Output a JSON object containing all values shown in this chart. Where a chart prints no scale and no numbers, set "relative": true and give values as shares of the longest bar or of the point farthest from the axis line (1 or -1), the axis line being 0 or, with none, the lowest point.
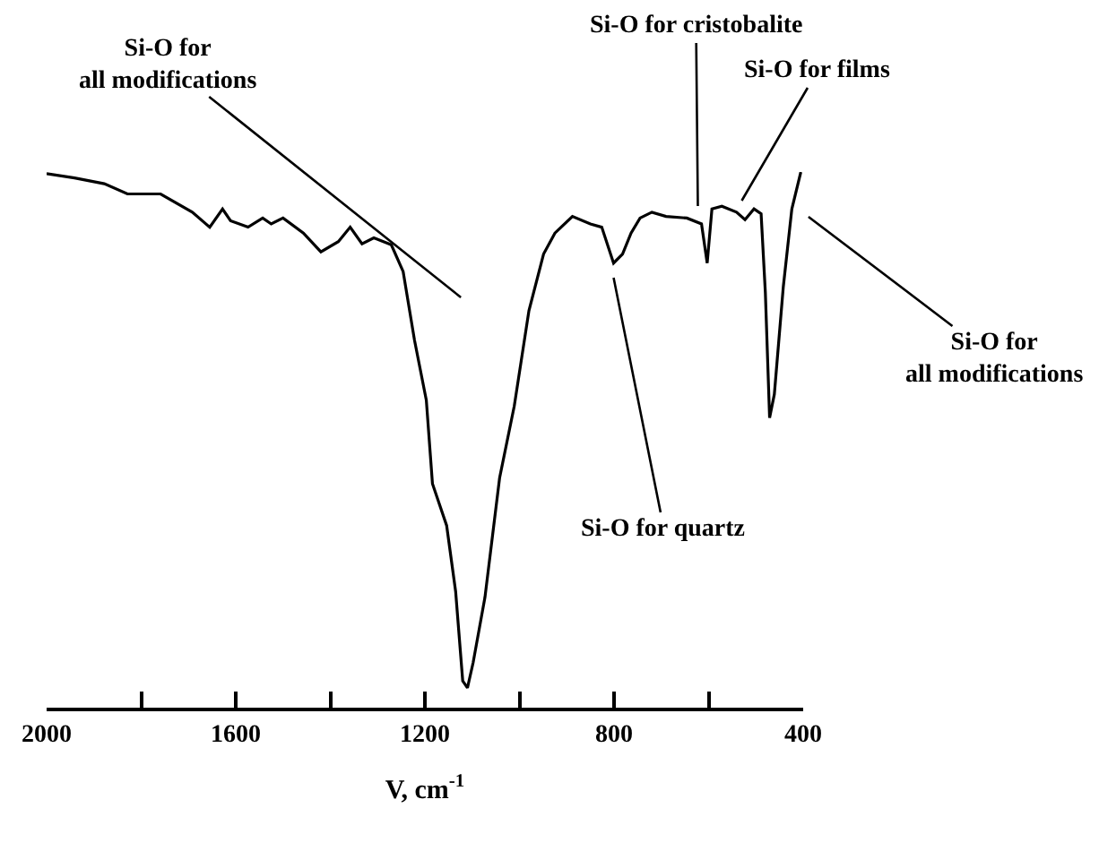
{
  "chart_data": {
    "type": "line",
    "relative": true,
    "xlabel": "V, cm$^{-1}$",
    "xlim": [
      2000,
      400
    ],
    "xticks": [
      2000,
      {
        "value": 1800,
        "label": null
      },
      1600,
      {
        "value": 1400,
        "label": null
      },
      1200,
      {
        "value": 1000,
        "label": null
      },
      800,
      {
        "value": 600,
        "label": null
      },
      400
    ],
    "x": [
      2000,
      1941,
      1878,
      1829,
      1759,
      1692,
      1655,
      1628,
      1611,
      1574,
      1543,
      1525,
      1500,
      1457,
      1420,
      1383,
      1358,
      1333,
      1308,
      1271,
      1246,
      1222,
      1197,
      1184,
      1154,
      1135,
      1120,
      1110,
      1098,
      1073,
      1042,
      1011,
      980,
      949,
      925,
      888,
      850,
      826,
      801,
      782,
      764,
      745,
      720,
      690,
      646,
      615,
      603,
      593,
      572,
      541,
      523,
      504,
      489,
      480,
      471,
      461,
      442,
      424,
      405
    ],
    "series": [
      {
        "color": "#000000",
        "values": [
          0.997,
          0.989,
          0.978,
          0.959,
          0.959,
          0.925,
          0.897,
          0.931,
          0.909,
          0.897,
          0.914,
          0.903,
          0.914,
          0.886,
          0.851,
          0.87,
          0.897,
          0.866,
          0.877,
          0.864,
          0.814,
          0.686,
          0.574,
          0.418,
          0.34,
          0.217,
          0.05,
          0.037,
          0.084,
          0.206,
          0.429,
          0.563,
          0.741,
          0.847,
          0.886,
          0.917,
          0.903,
          0.897,
          0.83,
          0.847,
          0.886,
          0.914,
          0.925,
          0.917,
          0.914,
          0.903,
          0.83,
          0.931,
          0.936,
          0.925,
          0.911,
          0.931,
          0.922,
          0.775,
          0.541,
          0.585,
          0.786,
          0.931,
          1.0
        ]
      }
    ],
    "annotations": [
      "Si-O for\nall modifications",
      "Si-O for cristobalite",
      "Si-O for films",
      "Si-O for\nall modifications",
      "Si-O for quartz"
    ],
    "marker": "none",
    "line_style": "solid"
  }
}
